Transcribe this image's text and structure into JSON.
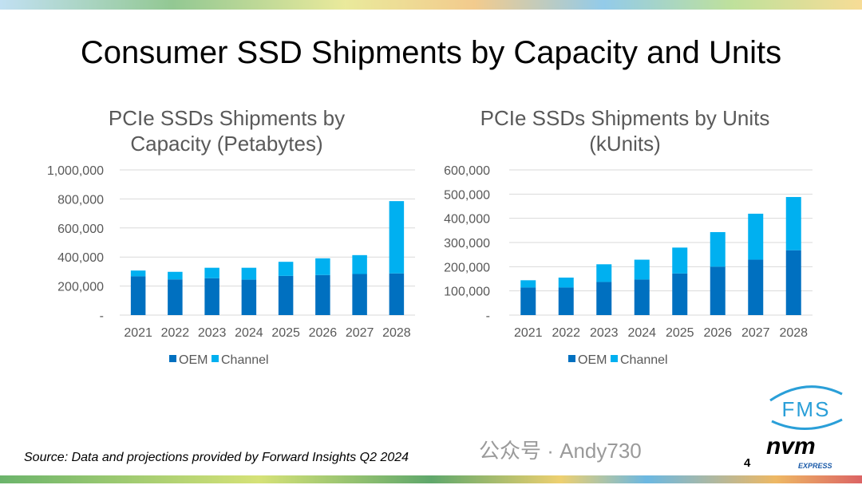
{
  "title": "Consumer SSD Shipments by Capacity and Units",
  "source": "Source: Data and projections provided by Forward Insights Q2 2024",
  "page_number": "4",
  "watermark": "公众号 · Andy730",
  "logos": {
    "fms": "FMS",
    "nvm": "nvm",
    "nvm_sub": "EXPRESS"
  },
  "colors": {
    "oem": "#0070C0",
    "channel": "#00B0F0",
    "grid": "#D9D9D9",
    "text": "#595959"
  },
  "chart_data": [
    {
      "type": "bar",
      "stacked": true,
      "title_lines": [
        "PCIe SSDs Shipments by",
        "Capacity (Petabytes)"
      ],
      "categories": [
        "2021",
        "2022",
        "2023",
        "2024",
        "2025",
        "2026",
        "2027",
        "2028"
      ],
      "series": [
        {
          "name": "OEM",
          "values": [
            267000,
            246000,
            254000,
            244000,
            270000,
            276000,
            283000,
            287000
          ]
        },
        {
          "name": "Channel",
          "values": [
            40000,
            52000,
            72000,
            82000,
            97000,
            115000,
            130000,
            498000
          ]
        }
      ],
      "ylim": [
        0,
        1000000
      ],
      "yticks": [
        "-",
        "200,000",
        "400,000",
        "600,000",
        "800,000",
        "1,000,000"
      ],
      "grid": true,
      "legend": "bottom"
    },
    {
      "type": "bar",
      "stacked": true,
      "title_lines": [
        "PCIe SSDs Shipments by Units",
        "(kUnits)"
      ],
      "categories": [
        "2021",
        "2022",
        "2023",
        "2024",
        "2025",
        "2026",
        "2027",
        "2028"
      ],
      "series": [
        {
          "name": "OEM",
          "values": [
            114000,
            114000,
            137000,
            147000,
            172000,
            200000,
            229000,
            268000
          ]
        },
        {
          "name": "Channel",
          "values": [
            30000,
            41000,
            73000,
            82000,
            107000,
            143000,
            190000,
            220000
          ]
        }
      ],
      "ylim": [
        0,
        600000
      ],
      "yticks": [
        "-",
        "100,000",
        "200,000",
        "300,000",
        "400,000",
        "500,000",
        "600,000"
      ],
      "grid": true,
      "legend": "bottom"
    }
  ]
}
